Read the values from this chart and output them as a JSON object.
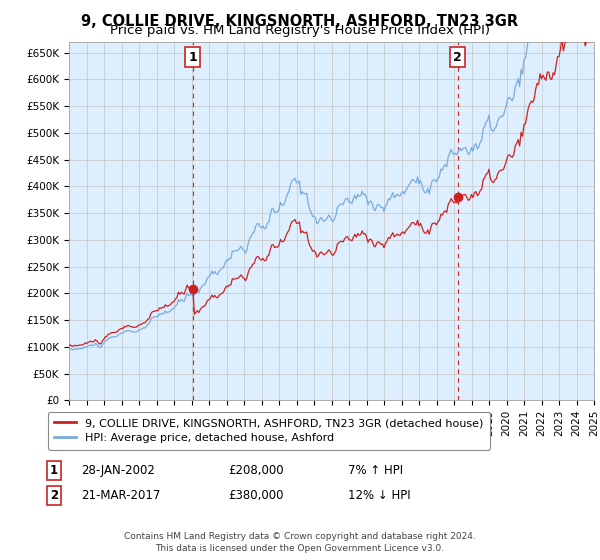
{
  "title": "9, COLLIE DRIVE, KINGSNORTH, ASHFORD, TN23 3GR",
  "subtitle": "Price paid vs. HM Land Registry's House Price Index (HPI)",
  "ylim": [
    0,
    670000
  ],
  "yticks": [
    0,
    50000,
    100000,
    150000,
    200000,
    250000,
    300000,
    350000,
    400000,
    450000,
    500000,
    550000,
    600000,
    650000
  ],
  "ytick_labels": [
    "£0",
    "£50K",
    "£100K",
    "£150K",
    "£200K",
    "£250K",
    "£300K",
    "£350K",
    "£400K",
    "£450K",
    "£500K",
    "£550K",
    "£600K",
    "£650K"
  ],
  "xmin_year": 1995,
  "xmax_year": 2025,
  "xtick_years": [
    1995,
    1996,
    1997,
    1998,
    1999,
    2000,
    2001,
    2002,
    2003,
    2004,
    2005,
    2006,
    2007,
    2008,
    2009,
    2010,
    2011,
    2012,
    2013,
    2014,
    2015,
    2016,
    2017,
    2018,
    2019,
    2020,
    2021,
    2022,
    2023,
    2024,
    2025
  ],
  "hpi_color": "#7aabdb",
  "price_color": "#cc2222",
  "vline_color": "#cc2222",
  "grid_color": "#cccccc",
  "background_color": "#ffffff",
  "chart_bg_color": "#ddeeff",
  "legend_label_hpi": "HPI: Average price, detached house, Ashford",
  "legend_label_price": "9, COLLIE DRIVE, KINGSNORTH, ASHFORD, TN23 3GR (detached house)",
  "annotation1_num": "1",
  "annotation1_date": "28-JAN-2002",
  "annotation1_price": "£208,000",
  "annotation1_hpi": "7% ↑ HPI",
  "annotation1_year": 2002.08,
  "annotation2_num": "2",
  "annotation2_date": "21-MAR-2017",
  "annotation2_price": "£380,000",
  "annotation2_hpi": "12% ↓ HPI",
  "annotation2_year": 2017.22,
  "point1_price": 208000,
  "point2_price": 380000,
  "footer": "Contains HM Land Registry data © Crown copyright and database right 2024.\nThis data is licensed under the Open Government Licence v3.0.",
  "title_fontsize": 10.5,
  "subtitle_fontsize": 9.5,
  "tick_fontsize": 7.5,
  "legend_fontsize": 8,
  "footer_fontsize": 6.5
}
